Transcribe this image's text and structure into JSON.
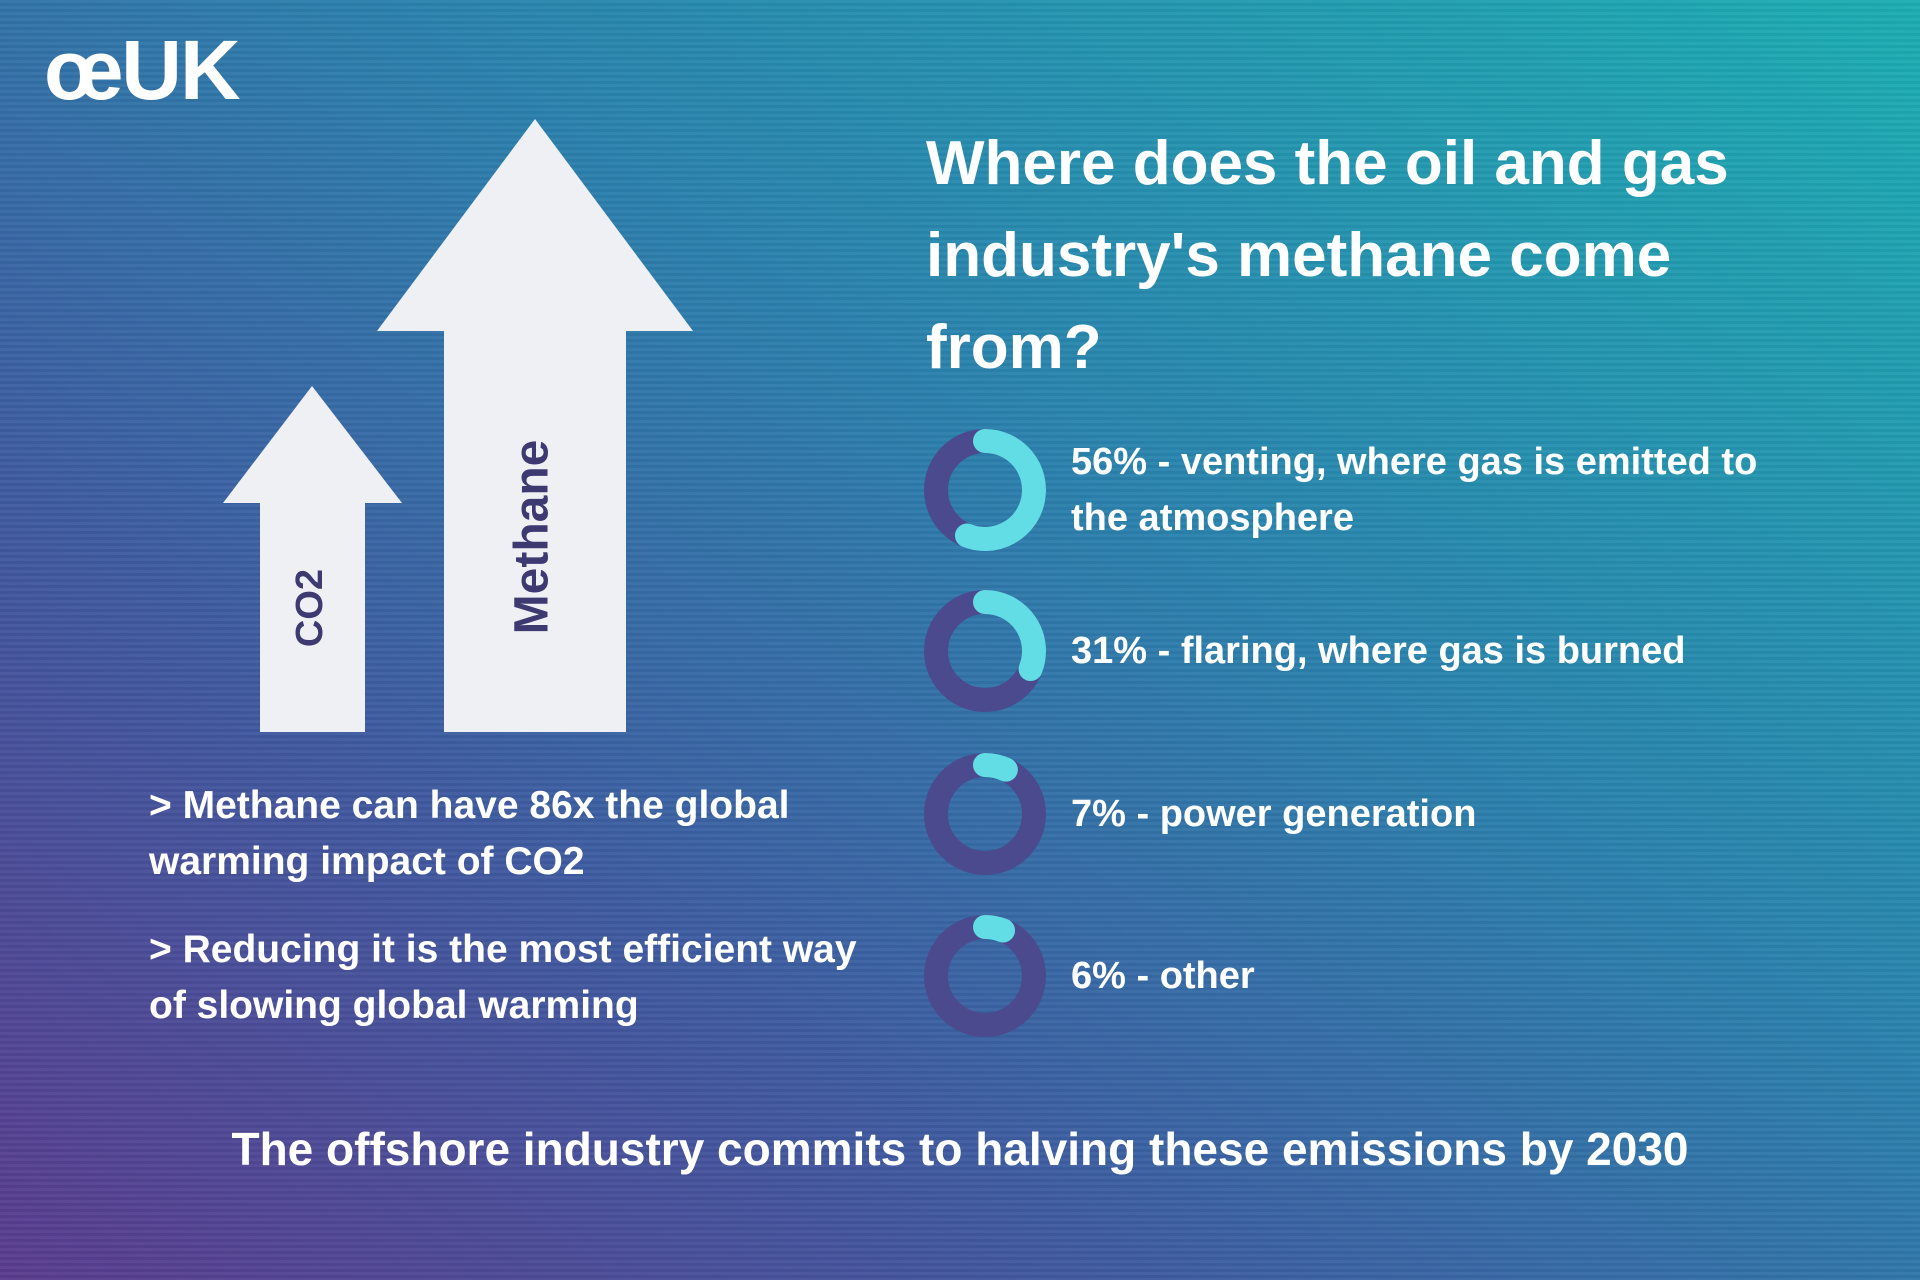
{
  "logo": "œUK",
  "arrows": {
    "small": "CO2",
    "large": "Methane"
  },
  "notes": [
    "> Methane can have 86x the global warming impact of CO2",
    "> Reducing it is the most efficient way of slowing global warming"
  ],
  "footer": "The offshore industry commits to halving these emissions by 2030",
  "chart_data": {
    "type": "donut",
    "title": "Where does the oil and gas industry's methane come from?",
    "categories": [
      "56% - venting, where gas is emitted to the atmosphere",
      "31% - flaring, where gas is burned",
      "7% - power generation",
      "6% - other"
    ],
    "values": [
      56,
      31,
      7,
      6
    ],
    "color": "#62dde6",
    "track_color": "#4b4a8e"
  }
}
